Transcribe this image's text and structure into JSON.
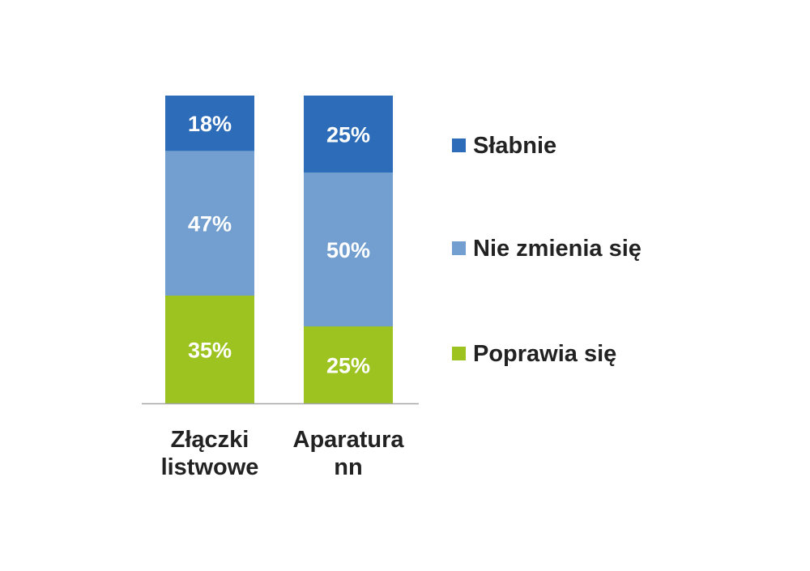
{
  "chart_data": {
    "type": "bar",
    "stacked": true,
    "percent": true,
    "categories": [
      [
        "Złączki",
        "listwowe"
      ],
      [
        "Aparatura",
        "nn"
      ]
    ],
    "series": [
      {
        "name": "Poprawia się",
        "values": [
          35,
          25
        ],
        "labels": [
          "35%",
          "25%"
        ],
        "color": "#9dc320"
      },
      {
        "name": "Nie zmienia się",
        "values": [
          47,
          50
        ],
        "labels": [
          "47%",
          "50%"
        ],
        "color": "#729fcf"
      },
      {
        "name": "Słabnie",
        "values": [
          18,
          25
        ],
        "labels": [
          "18%",
          "25%"
        ],
        "color": "#2c6cb8"
      }
    ],
    "legend_order": [
      "Słabnie",
      "Nie zmienia się",
      "Poprawia się"
    ],
    "legend_position": "right",
    "ylim": [
      0,
      100
    ],
    "y_axis_visible": false,
    "grid": false,
    "title": "",
    "xlabel": "",
    "ylabel": ""
  }
}
